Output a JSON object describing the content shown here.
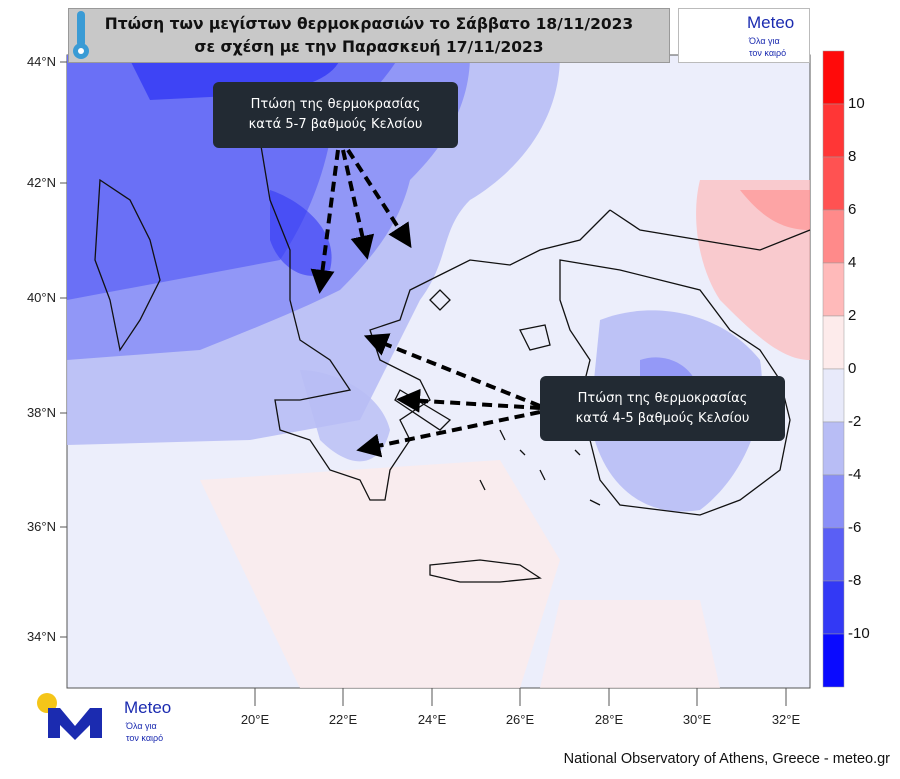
{
  "header": {
    "title_line1": "Πτώση των μεγίστων θερμοκρασιών το Σάββατο 18/11/2023",
    "title_line2": "σε σχέση με την Παρασκευή 17/11/2023",
    "thermometer_icon": "thermometer-icon"
  },
  "logo": {
    "brand": "Meteo",
    "tagline_line1": "Όλα για",
    "tagline_line2": "τον καιρό",
    "colors": {
      "m": "#1b2bb0",
      "sun": "#f5c518"
    }
  },
  "annotations": [
    {
      "line1": "Πτώση της θερμοκρασίας",
      "line2": "κατά 5-7 βαθμούς Κελσίου"
    },
    {
      "line1": "Πτώση της θερμοκρασίας",
      "line2": "κατά 4-5 βαθμούς Κελσίου"
    }
  ],
  "axes": {
    "latitudes": [
      "44°N",
      "42°N",
      "40°N",
      "38°N",
      "36°N",
      "34°N"
    ],
    "longitudes": [
      "20°E",
      "22°E",
      "24°E",
      "26°E",
      "28°E",
      "30°E",
      "32°E"
    ]
  },
  "colorbar": {
    "labels": [
      "10",
      "8",
      "6",
      "4",
      "2",
      "0",
      "-2",
      "-4",
      "-6",
      "-8",
      "-10"
    ],
    "colors": [
      "#ff0a0a",
      "#ff3636",
      "#ff5252",
      "#ff8a8a",
      "#ffbaba",
      "#fdebeb",
      "#e8eafa",
      "#b8bdf5",
      "#8a8ff7",
      "#5a5ff5",
      "#3339f5",
      "#0a0aff"
    ]
  },
  "credit": "National Observatory of Athens, Greece - meteo.gr"
}
